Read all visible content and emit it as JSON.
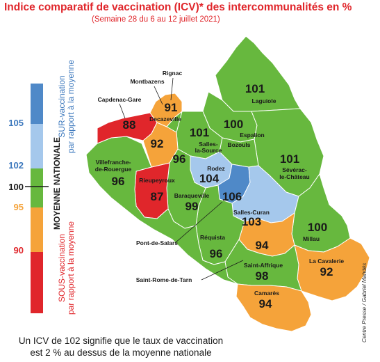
{
  "title": "Indice comparatif de vaccination (ICV)* des intercommunalités en %",
  "subtitle": "(Semaine 28 du 6 au 12 juillet 2021)",
  "footnote": [
    "Un ICV de 102 signifie que le taux de vaccination",
    "est 2 % au dessus de la moyenne nationale"
  ],
  "credit": "Centre Presse / Gabriel Mahdés",
  "colors": {
    "over_high": "#4f89c8",
    "over_low": "#a5c8ec",
    "average": "#67b83e",
    "under_low": "#f5a33a",
    "under_high": "#e0262b",
    "text": "#1a1a1a"
  },
  "legend": {
    "ticks": [
      "105",
      "102",
      "100",
      "95",
      "90"
    ],
    "average_label": "MOYENNE NATIONALE",
    "over_label": [
      "SUR-vaccination",
      "par rapport à la moyenne"
    ],
    "under_label": [
      "SOUS-vaccination",
      "par rapport à la moyenne"
    ]
  },
  "regions": [
    {
      "name": "Laguiole",
      "value": 101,
      "category": "average"
    },
    {
      "name": "Espalion",
      "value": 100,
      "category": "average"
    },
    {
      "name": "Bozouls",
      "value": null,
      "category": "average"
    },
    {
      "name": "Salles-la-Source",
      "value": 101,
      "category": "average"
    },
    {
      "name": "Sévérac-le-Château",
      "value": 101,
      "category": "average"
    },
    {
      "name": "Rodez",
      "value": 104,
      "category": "over_low"
    },
    {
      "name": "Salles-Curan",
      "value": 103,
      "category": "over_low"
    },
    {
      "name": "Pont-de-Salars",
      "value": 106,
      "category": "over_high"
    },
    {
      "name": "Millau",
      "value": 100,
      "category": "average"
    },
    {
      "name": "La Cavalerie",
      "value": 92,
      "category": "under_low"
    },
    {
      "name": "Saint-Affrique",
      "value": 98,
      "category": "average"
    },
    {
      "name": "Saint-Rome-de-Tarn",
      "value": 94,
      "category": "under_low"
    },
    {
      "name": "Camarès",
      "value": 94,
      "category": "under_low"
    },
    {
      "name": "Réquista",
      "value": 96,
      "category": "average"
    },
    {
      "name": "Baraqueville",
      "value": 99,
      "category": "average"
    },
    {
      "name": "Rieupeyroux",
      "value": 87,
      "category": "under_high"
    },
    {
      "name": "Villefranche-de-Rouergue",
      "value": 96,
      "category": "average"
    },
    {
      "name": "Capdenac-Gare",
      "value": 88,
      "category": "under_high"
    },
    {
      "name": "Montbazens",
      "value": 92,
      "category": "under_low"
    },
    {
      "name": "Rignac",
      "value": 96,
      "category": "average"
    },
    {
      "name": "Decazeville",
      "value": 91,
      "category": "under_low"
    }
  ]
}
